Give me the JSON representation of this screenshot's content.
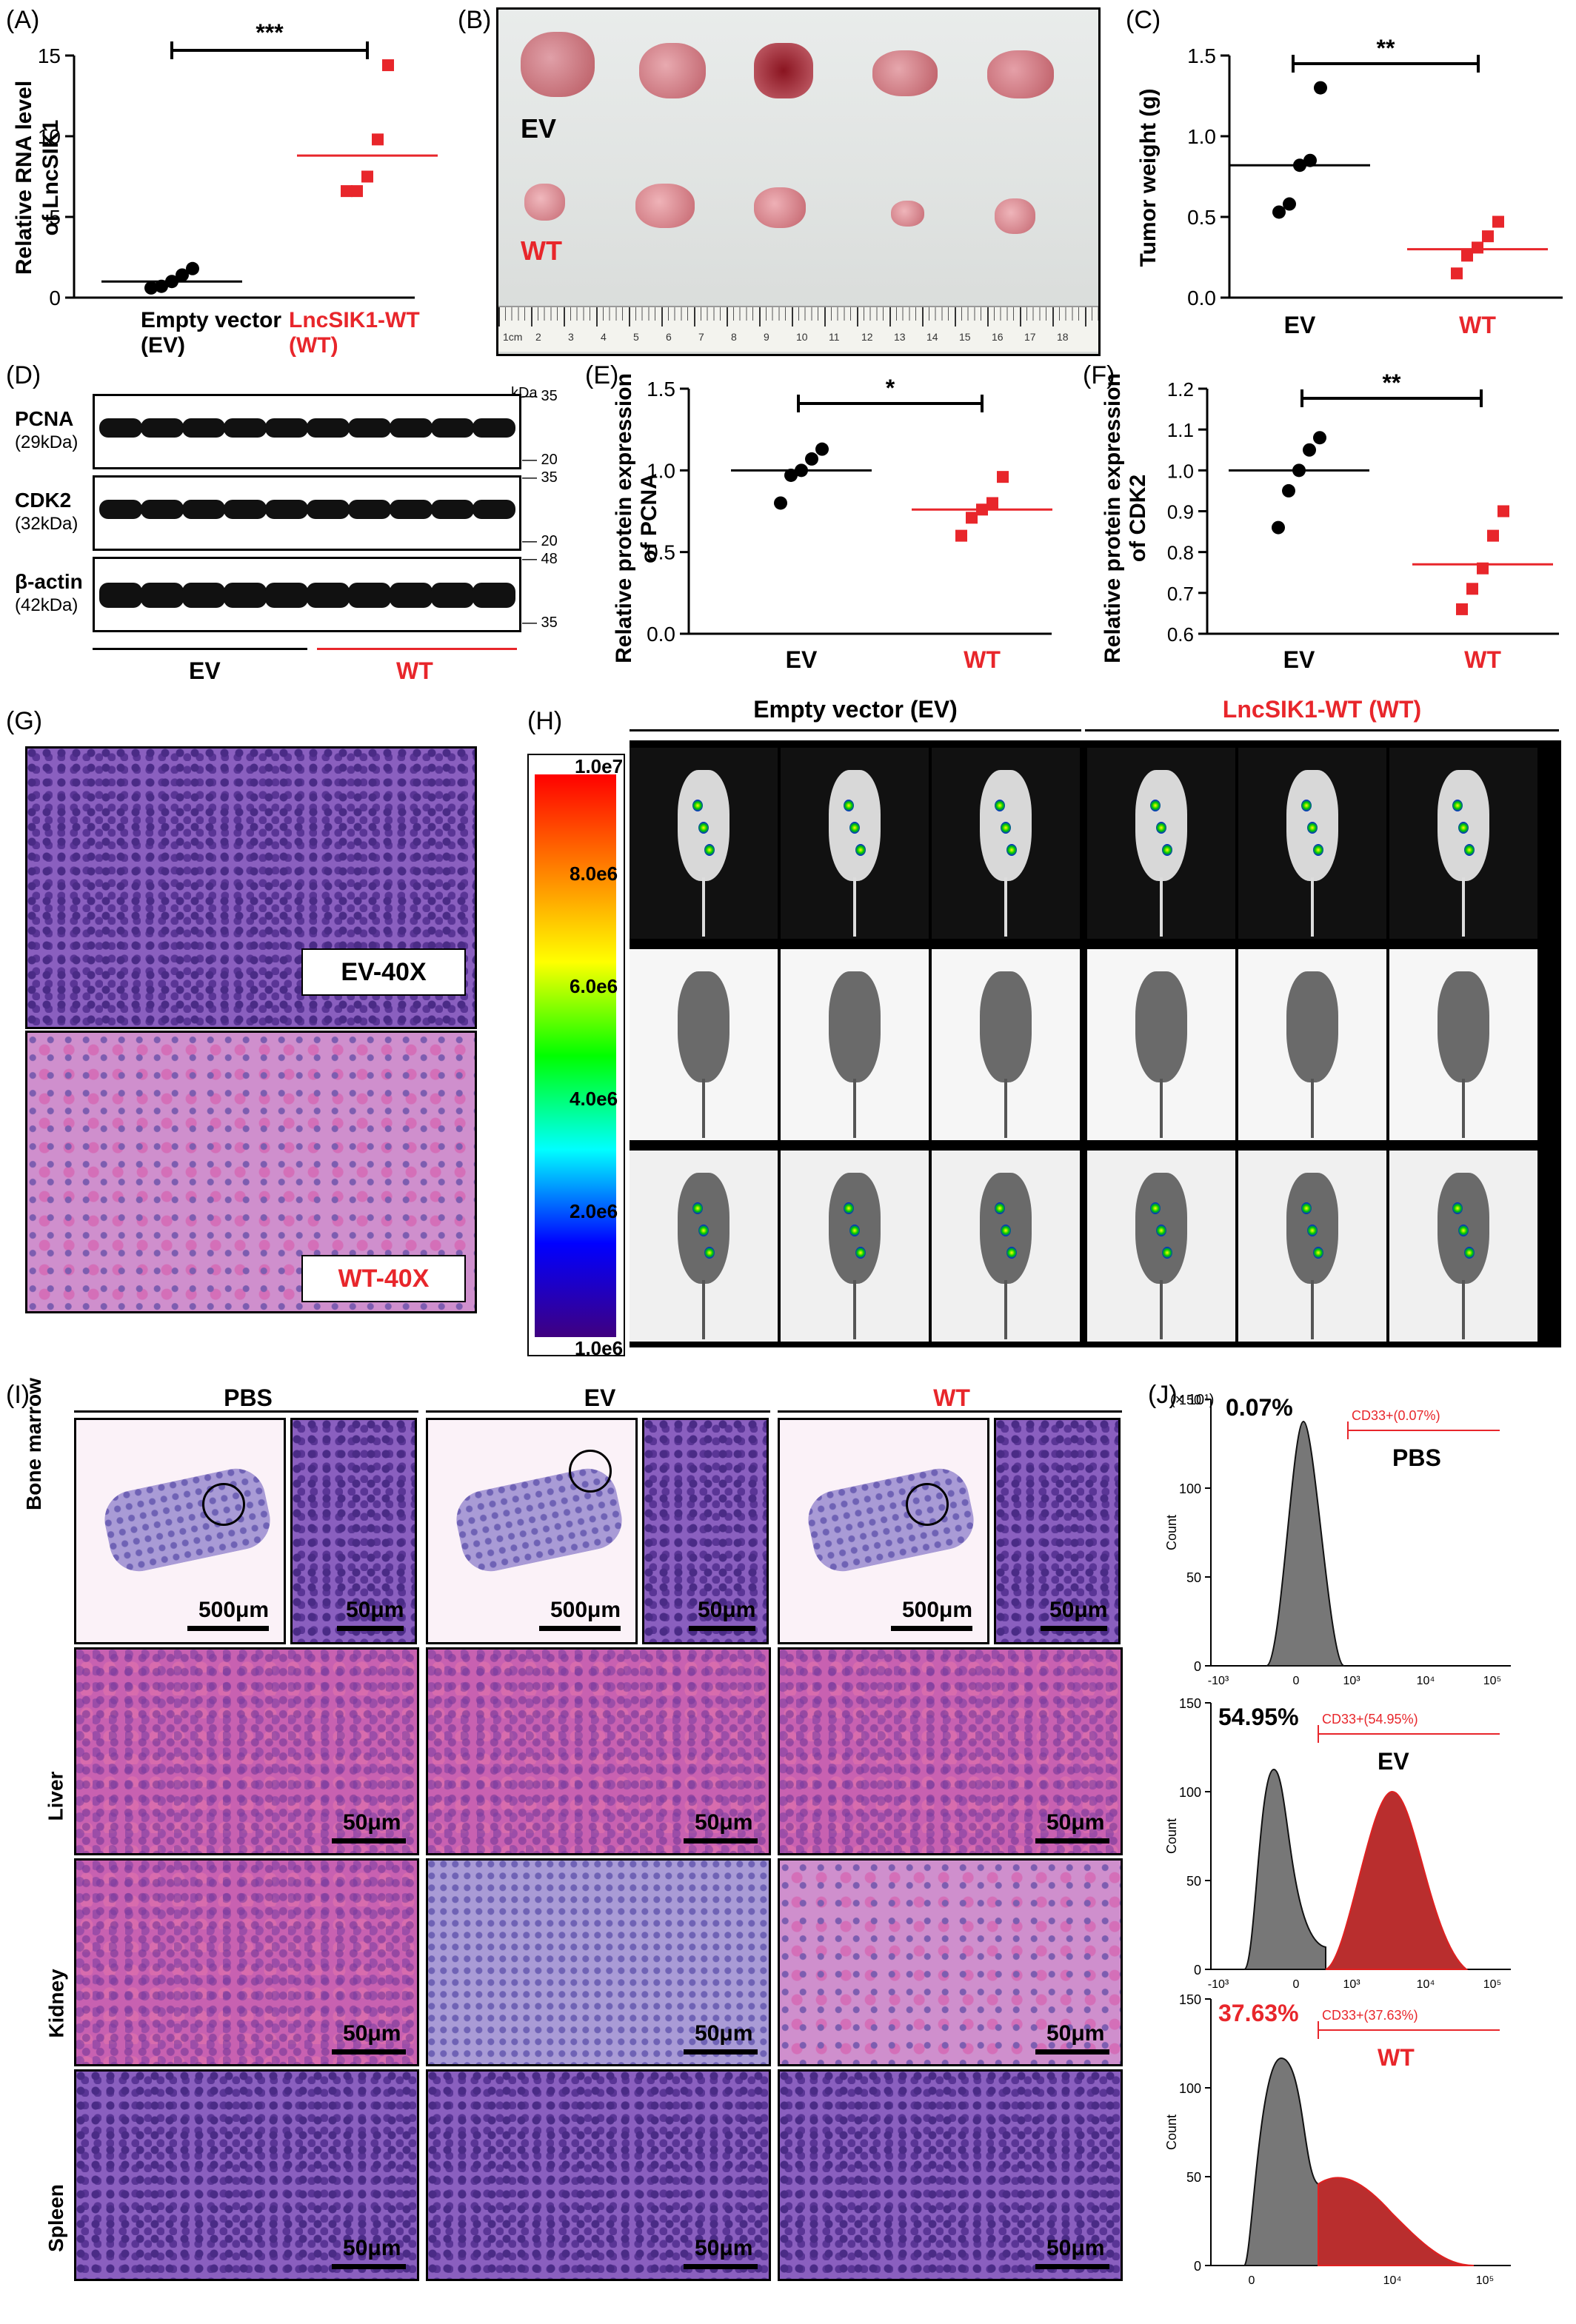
{
  "panels": {
    "A": "(A)",
    "B": "(B)",
    "C": "(C)",
    "D": "(D)",
    "E": "(E)",
    "F": "(F)",
    "G": "(G)",
    "H": "(H)",
    "I": "(I)",
    "J": "(J)"
  },
  "colors": {
    "ev": "#000000",
    "wt": "#e8262b"
  },
  "panel_a": {
    "ylabel": "Relative RNA level of LncSIK1",
    "ylabel1": "Relative RNA level",
    "ylabel2": "of LncSIK1",
    "sig": "***",
    "x1a": "Empty vector",
    "x1b": "(EV)",
    "x2a": "LncSIK1-WT",
    "x2b": "(WT)",
    "ticks": [
      "0",
      "5",
      "10",
      "15"
    ]
  },
  "panel_b": {
    "ev": "EV",
    "wt": "WT",
    "ruler": [
      "1cm",
      "2",
      "3",
      "4",
      "5",
      "6",
      "7",
      "8",
      "9",
      "10",
      "11",
      "12",
      "13",
      "14",
      "15",
      "16",
      "17",
      "18"
    ]
  },
  "panel_c": {
    "ylabel": "Tumor weight (g)",
    "sig": "**",
    "ticks": [
      "0.0",
      "0.5",
      "1.0",
      "1.5"
    ],
    "x1": "EV",
    "x2": "WT"
  },
  "panel_d": {
    "kda": "kDa",
    "rows": [
      {
        "name": "PCNA",
        "size": "(29kDa)",
        "top": "35",
        "bot": "20"
      },
      {
        "name": "CDK2",
        "size": "(32kDa)",
        "top": "35",
        "bot": "20"
      },
      {
        "name": "β-actin",
        "size": "(42kDa)",
        "top": "48",
        "bot": "35"
      }
    ],
    "ev": "EV",
    "wt": "WT"
  },
  "panel_e": {
    "ylabel1": "Relative protein expression",
    "ylabel2": "of PCNA",
    "sig": "*",
    "ticks": [
      "0.0",
      "0.5",
      "1.0",
      "1.5"
    ],
    "x1": "EV",
    "x2": "WT"
  },
  "panel_f": {
    "ylabel1": "Relative protein expression",
    "ylabel2": "of CDK2",
    "sig": "**",
    "ticks": [
      "0.6",
      "0.7",
      "0.8",
      "0.9",
      "1.0",
      "1.1",
      "1.2"
    ],
    "x1": "EV",
    "x2": "WT"
  },
  "panel_g": {
    "top": "EV-40X",
    "bottom": "WT-40X"
  },
  "panel_h": {
    "ev": "Empty vector (EV)",
    "wt": "LncSIK1-WT (WT)",
    "scale": [
      "1.0e7",
      "8.0e6",
      "6.0e6",
      "4.0e6",
      "2.0e6",
      "1.0e6"
    ]
  },
  "panel_i": {
    "cols": [
      "PBS",
      "EV",
      "WT"
    ],
    "rows": [
      "Bone marrow",
      "Liver",
      "Kidney",
      "Spleen"
    ],
    "bm_row1": "Bone",
    "bm_row2": "marrow",
    "s500": "500μm",
    "s50": "50μm"
  },
  "panel_j": {
    "exp": "(× 10¹)",
    "ylabel": "Count",
    "plots": [
      {
        "pct": "0.07%",
        "gate": "CD33+(0.07%)",
        "name": "PBS",
        "yt": [
          "0",
          "50",
          "100",
          "150"
        ]
      },
      {
        "pct": "54.95%",
        "gate": "CD33+(54.95%)",
        "name": "EV",
        "yt": [
          "0",
          "50",
          "100",
          "150"
        ]
      },
      {
        "pct": "37.63%",
        "gate": "CD33+(37.63%)",
        "name": "WT",
        "yt": [
          "0",
          "50",
          "100",
          "150"
        ]
      }
    ],
    "xt": [
      "-10³",
      "0",
      "10³",
      "10⁴",
      "10⁵"
    ],
    "xt2": [
      "0",
      "10⁴",
      "10⁵"
    ]
  },
  "chart_data": [
    {
      "type": "scatter",
      "panel": "A",
      "ylabel": "Relative RNA level of LncSIK1",
      "ylim": [
        0,
        15
      ],
      "series": [
        {
          "name": "Empty vector (EV)",
          "values": [
            0.6,
            0.7,
            1.0,
            1.4,
            1.8
          ],
          "mean": 1.0
        },
        {
          "name": "LncSIK1-WT (WT)",
          "values": [
            6.6,
            6.6,
            7.5,
            9.8,
            14.4
          ],
          "mean": 8.8
        }
      ]
    },
    {
      "type": "scatter",
      "panel": "C",
      "ylabel": "Tumor weight (g)",
      "ylim": [
        0,
        1.5
      ],
      "series": [
        {
          "name": "EV",
          "values": [
            0.53,
            0.58,
            0.82,
            0.85,
            1.3
          ],
          "mean": 0.82
        },
        {
          "name": "WT",
          "values": [
            0.15,
            0.26,
            0.31,
            0.38,
            0.47
          ],
          "mean": 0.3
        }
      ]
    },
    {
      "type": "scatter",
      "panel": "E",
      "ylabel": "Relative protein expression of PCNA",
      "ylim": [
        0,
        1.5
      ],
      "series": [
        {
          "name": "EV",
          "values": [
            0.8,
            0.97,
            1.0,
            1.07,
            1.13
          ],
          "mean": 1.0
        },
        {
          "name": "WT",
          "values": [
            0.6,
            0.71,
            0.76,
            0.8,
            0.96
          ],
          "mean": 0.76
        }
      ]
    },
    {
      "type": "scatter",
      "panel": "F",
      "ylabel": "Relative protein expression of CDK2",
      "ylim": [
        0.6,
        1.2
      ],
      "series": [
        {
          "name": "EV",
          "values": [
            0.86,
            0.95,
            1.0,
            1.05,
            1.08
          ],
          "mean": 1.0
        },
        {
          "name": "WT",
          "values": [
            0.66,
            0.71,
            0.76,
            0.84,
            0.9
          ],
          "mean": 0.77
        }
      ]
    }
  ]
}
